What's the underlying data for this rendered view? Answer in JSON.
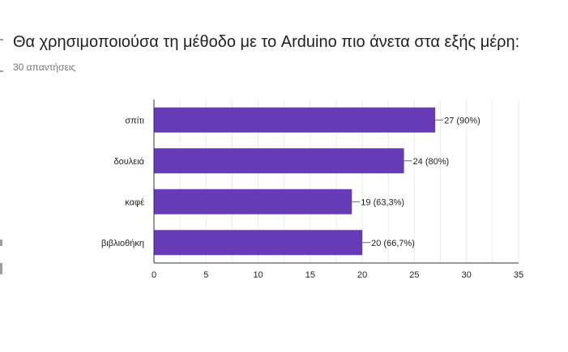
{
  "question": {
    "title": "Θα χρησιμοποιούσα τη μέθοδο με το Arduino πιο άνετα στα εξής μέρη:",
    "responses": "30 απαντήσεις"
  },
  "colors": {
    "bar": "#673ab7",
    "grid": "#ebebeb",
    "axis": "#333333"
  },
  "chart_data": {
    "type": "bar",
    "orientation": "horizontal",
    "categories": [
      "σπίτι",
      "δουλειά",
      "καφέ",
      "βιβλιοθήκη"
    ],
    "values": [
      27,
      24,
      19,
      20
    ],
    "data_labels": [
      "27 (90%)",
      "24 (80%)",
      "19 (63,3%)",
      "20 (66,7%)"
    ],
    "xlim": [
      0,
      35
    ],
    "xticks": [
      0,
      5,
      10,
      15,
      20,
      25,
      30,
      35
    ],
    "grid": true,
    "title": "Θα χρησιμοποιούσα τη μέθοδο με το Arduino πιο άνετα στα εξής μέρη:",
    "xlabel": "",
    "ylabel": ""
  }
}
